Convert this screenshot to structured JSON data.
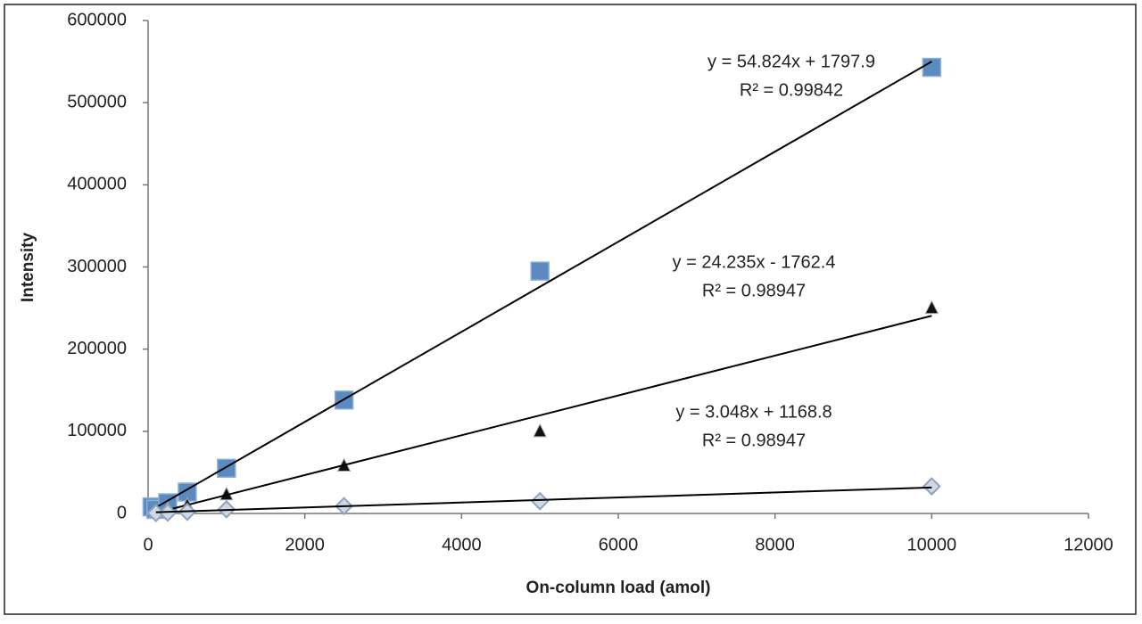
{
  "chart_data": {
    "type": "scatter",
    "y_label": "Intensity",
    "x_label": "On-column load (amol)",
    "xlim": [
      0,
      12000
    ],
    "xticks": [
      0,
      2000,
      4000,
      6000,
      8000,
      10000,
      12000
    ],
    "ylim": [
      0,
      600000
    ],
    "yticks": [
      0,
      100000,
      200000,
      300000,
      400000,
      500000,
      600000
    ],
    "grid": false,
    "series": [
      {
        "marker": "square",
        "color": "#5a8ac0",
        "x": [
          50,
          100,
          250,
          500,
          1000,
          2500,
          5000,
          10000
        ],
        "values": [
          8000,
          5000,
          13000,
          26000,
          55000,
          138000,
          295000,
          543000
        ],
        "trendline": {
          "slope": 54.824,
          "intercept": 1797.9,
          "equation": "y = 54.824x + 1797.9",
          "r2": "R² = 0.99842"
        }
      },
      {
        "marker": "triangle",
        "color": "#111111",
        "x": [
          100,
          250,
          500,
          1000,
          2500,
          5000,
          10000
        ],
        "values": [
          2000,
          5000,
          10000,
          23000,
          58000,
          100000,
          250000
        ],
        "trendline": {
          "slope": 24.235,
          "intercept": -1762.4,
          "equation": "y = 24.235x - 1762.4",
          "r2": "R² = 0.98947"
        }
      },
      {
        "marker": "diamond",
        "color": "#8ea3bc",
        "x": [
          100,
          250,
          500,
          1000,
          2500,
          5000,
          10000
        ],
        "values": [
          500,
          1000,
          2000,
          5000,
          9000,
          15000,
          33000
        ],
        "trendline": {
          "slope": 3.048,
          "intercept": 1168.8,
          "equation": "y = 3.048x + 1168.8",
          "r2": "R² = 0.98947"
        }
      }
    ]
  }
}
